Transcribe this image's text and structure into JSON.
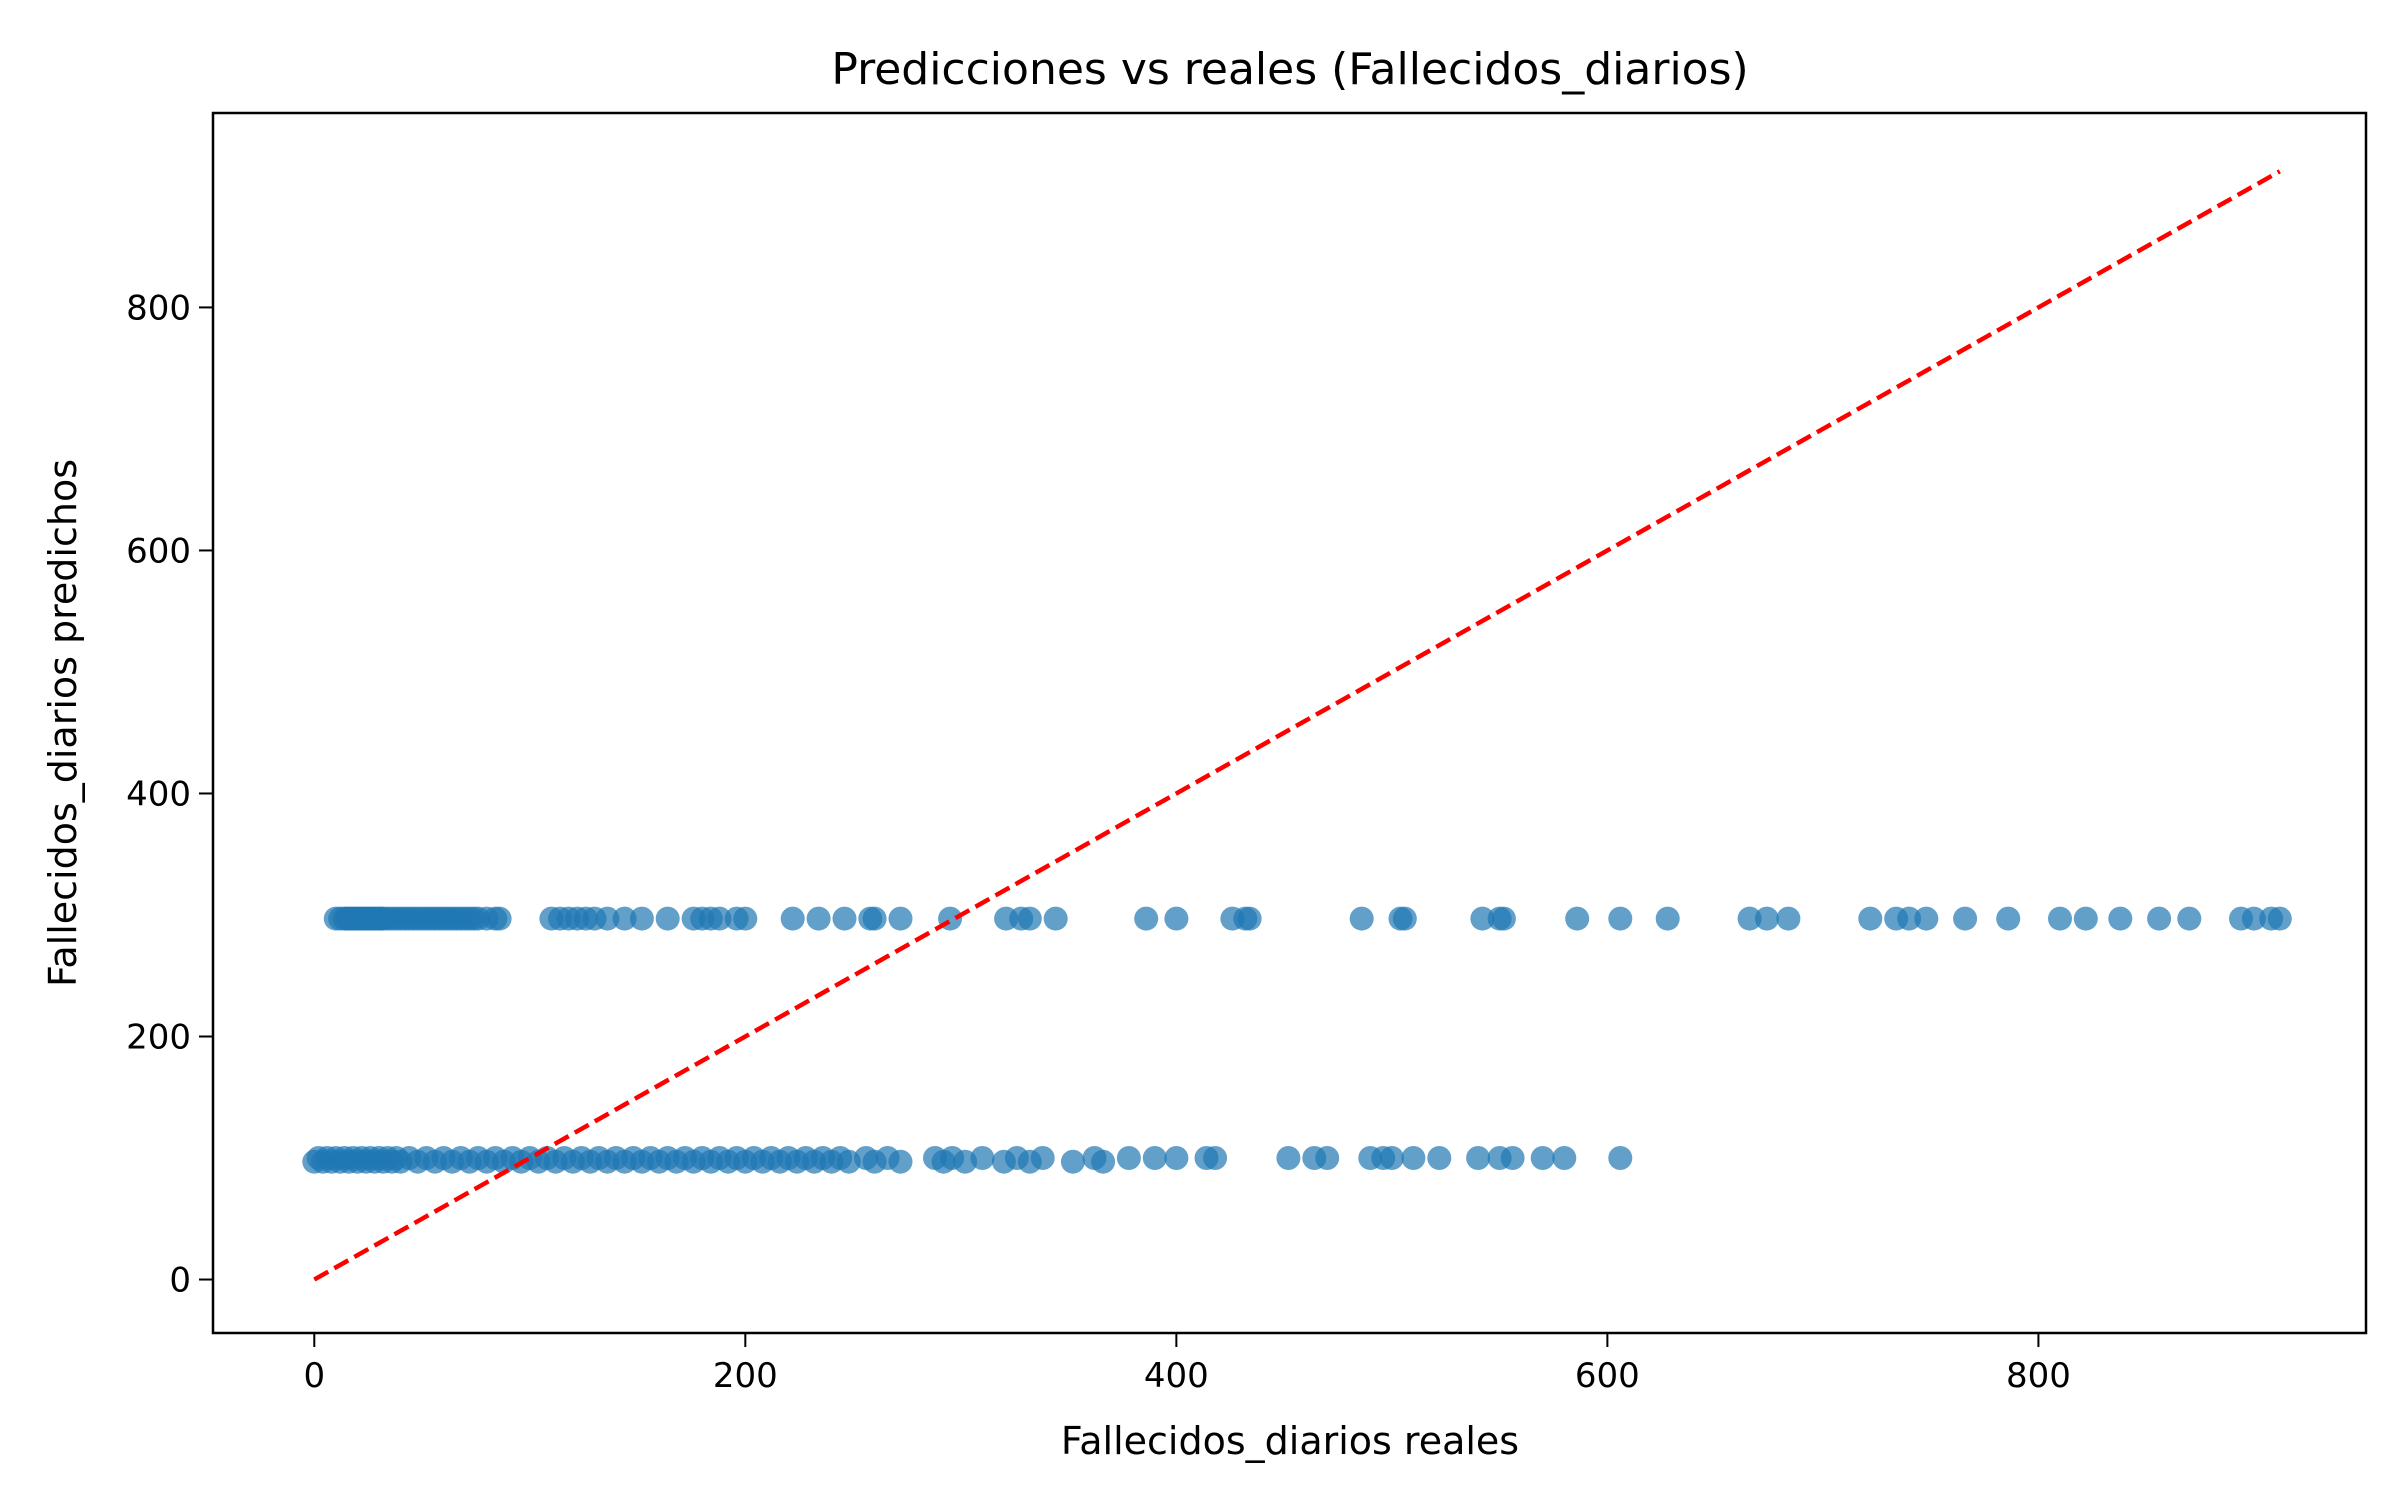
{
  "chart_data": {
    "type": "scatter",
    "title": "Predicciones vs reales (Fallecidos_diarios)",
    "xlabel": "Fallecidos_diarios reales",
    "ylabel": "Fallecidos_diarios predichos",
    "xlim": [
      -47,
      952
    ],
    "ylim": [
      -44,
      960
    ],
    "xticks": [
      0,
      200,
      400,
      600,
      800
    ],
    "yticks": [
      0,
      200,
      400,
      600,
      800
    ],
    "x_tick_labels": [
      "0",
      "200",
      "400",
      "600",
      "800"
    ],
    "y_tick_labels": [
      "0",
      "200",
      "400",
      "600",
      "800"
    ],
    "grid": false,
    "legend": "none",
    "colors": {
      "points": "#1f77b4",
      "reference_line": "#ff0000"
    },
    "reference_line": {
      "style": "dashed",
      "points": [
        [
          0,
          0
        ],
        [
          912,
          912
        ]
      ]
    },
    "series": [
      {
        "predicted": 297,
        "x": [
          10,
          12,
          14,
          15,
          16,
          17,
          18,
          19,
          20,
          21,
          22,
          23,
          24,
          25,
          26,
          27,
          28,
          29,
          30,
          31,
          32,
          34,
          36,
          38,
          40,
          42,
          44,
          46,
          48,
          50,
          52,
          54,
          56,
          58,
          60,
          62,
          64,
          66,
          68,
          70,
          72,
          74,
          76,
          80,
          84,
          86,
          110,
          114,
          118,
          122,
          126,
          130,
          136,
          144,
          152,
          164,
          176,
          180,
          184,
          188,
          196,
          200,
          222,
          234,
          246,
          258,
          260,
          272,
          295,
          321,
          328,
          332,
          344,
          386,
          400,
          426,
          432,
          434,
          486,
          504,
          506,
          542,
          550,
          552,
          586,
          606,
          628,
          666,
          674,
          684,
          722,
          734,
          740,
          748,
          766,
          786,
          810,
          822,
          838,
          856,
          870,
          894,
          900,
          908,
          912
        ],
        "y": [
          297,
          297,
          297,
          297,
          297,
          297,
          297,
          297,
          297,
          297,
          297,
          297,
          297,
          297,
          297,
          297,
          297,
          297,
          297,
          297,
          297,
          297,
          297,
          297,
          297,
          297,
          297,
          297,
          297,
          297,
          297,
          297,
          297,
          297,
          297,
          297,
          297,
          297,
          297,
          297,
          297,
          297,
          297,
          297,
          297,
          297,
          297,
          297,
          297,
          297,
          297,
          297,
          297,
          297,
          297,
          297,
          297,
          297,
          297,
          297,
          297,
          297,
          297,
          297,
          297,
          297,
          297,
          297,
          297,
          297,
          297,
          297,
          297,
          297,
          297,
          297,
          297,
          297,
          297,
          297,
          297,
          297,
          297,
          297,
          297,
          297,
          297,
          297,
          297,
          297,
          297,
          297,
          297,
          297,
          297,
          297,
          297,
          297,
          297,
          297,
          297,
          297,
          297,
          297,
          297
        ]
      },
      {
        "predicted": 100,
        "x": [
          0,
          2,
          4,
          6,
          8,
          10,
          12,
          14,
          16,
          18,
          20,
          22,
          24,
          26,
          28,
          30,
          32,
          34,
          36,
          38,
          40,
          44,
          48,
          52,
          56,
          60,
          64,
          68,
          72,
          76,
          80,
          84,
          88,
          92,
          96,
          100,
          104,
          108,
          112,
          116,
          120,
          124,
          128,
          132,
          136,
          140,
          144,
          148,
          152,
          156,
          160,
          164,
          168,
          172,
          176,
          180,
          184,
          188,
          192,
          196,
          200,
          204,
          208,
          212,
          216,
          220,
          224,
          228,
          232,
          236,
          240,
          244,
          248,
          256,
          260,
          266,
          272,
          288,
          292,
          296,
          302,
          310,
          320,
          326,
          332,
          338,
          352,
          362,
          366,
          378,
          390,
          400,
          414,
          418,
          452,
          464,
          470,
          490,
          496,
          500,
          510,
          522,
          540,
          550,
          556,
          570,
          580,
          606
        ],
        "y": [
          97,
          100,
          97,
          100,
          97,
          100,
          97,
          100,
          97,
          100,
          97,
          100,
          97,
          100,
          97,
          100,
          97,
          100,
          97,
          100,
          97,
          100,
          97,
          100,
          97,
          100,
          97,
          100,
          97,
          100,
          97,
          100,
          97,
          100,
          97,
          100,
          97,
          100,
          97,
          100,
          97,
          100,
          97,
          100,
          97,
          100,
          97,
          100,
          97,
          100,
          97,
          100,
          97,
          100,
          97,
          100,
          97,
          100,
          97,
          100,
          97,
          100,
          97,
          100,
          97,
          100,
          97,
          100,
          97,
          100,
          97,
          100,
          97,
          100,
          97,
          100,
          97,
          100,
          97,
          100,
          97,
          100,
          97,
          100,
          97,
          100,
          97,
          100,
          97,
          100,
          100,
          100,
          100,
          100,
          100,
          100,
          100,
          100,
          100,
          100,
          100,
          100,
          100,
          100,
          100,
          100,
          100,
          100
        ]
      }
    ]
  }
}
